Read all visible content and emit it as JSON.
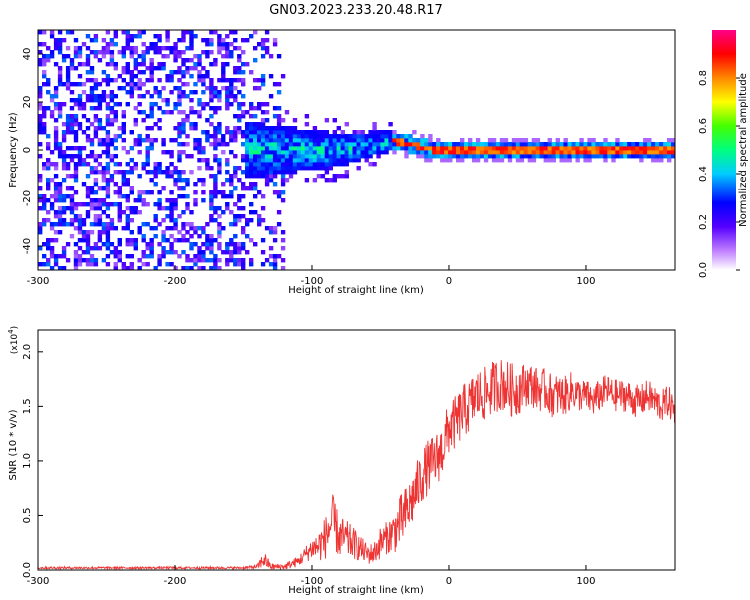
{
  "title": "GN03.2023.233.20.48.R17",
  "chart_data": [
    {
      "type": "heatmap",
      "xlabel": "Height of straight line (km)",
      "ylabel": "Frequency (Hz)",
      "xlim": [
        -300,
        165
      ],
      "ylim": [
        -50,
        50
      ],
      "xticks": [
        -300,
        -200,
        -100,
        0,
        100
      ],
      "yticks": [
        -40,
        -20,
        0,
        20,
        40
      ],
      "colorbar": {
        "label": "Normalized spectral amplitude",
        "range": [
          0,
          1
        ],
        "ticks": [
          "0.0",
          "0.2",
          "0.4",
          "0.6",
          "0.8"
        ],
        "colors": [
          "#ffffff",
          "#8800ff",
          "#0000ff",
          "#00ffff",
          "#00ff00",
          "#ffff00",
          "#ff8800",
          "#ff0000",
          "#ff0088"
        ]
      },
      "regions": [
        {
          "x_range": [
            -300,
            -120
          ],
          "description": "broadband noise, amplitude 0.1-0.3",
          "amplitude": 0.2
        },
        {
          "x_range": [
            -150,
            -40
          ],
          "freq_center": 0,
          "freq_spread": 12,
          "amplitude": 0.45
        },
        {
          "x_range": [
            -40,
            165
          ],
          "freq_center": 0,
          "freq_spread": 3,
          "amplitude": 0.85
        }
      ]
    },
    {
      "type": "line",
      "xlabel": "Height of straight line (km)",
      "ylabel": "SNR (10 * v/v)",
      "yscale_label": "(x10",
      "yscale_exp": "4",
      "yscale_close": ")",
      "xlim": [
        -300,
        165
      ],
      "ylim": [
        0,
        2.2
      ],
      "xticks": [
        -300,
        -200,
        -100,
        0,
        100
      ],
      "yticks": [
        "0.0",
        "0.5",
        "1.0",
        "1.5",
        "2.0"
      ],
      "series": [
        {
          "color": "#ee3333",
          "x": [
            -300,
            -260,
            -220,
            -180,
            -150,
            -140,
            -135,
            -130,
            -120,
            -110,
            -100,
            -95,
            -90,
            -85,
            -80,
            -75,
            -70,
            -65,
            -60,
            -55,
            -50,
            -45,
            -40,
            -35,
            -30,
            -25,
            -20,
            -15,
            -10,
            -5,
            0,
            5,
            10,
            15,
            20,
            25,
            30,
            35,
            40,
            45,
            50,
            55,
            60,
            65,
            70,
            75,
            80,
            85,
            90,
            95,
            100,
            105,
            110,
            115,
            120,
            125,
            130,
            135,
            140,
            145,
            150,
            155,
            160,
            165
          ],
          "y": [
            0.02,
            0.02,
            0.02,
            0.02,
            0.02,
            0.03,
            0.1,
            0.03,
            0.03,
            0.08,
            0.2,
            0.22,
            0.3,
            0.45,
            0.3,
            0.28,
            0.25,
            0.2,
            0.15,
            0.15,
            0.25,
            0.3,
            0.35,
            0.45,
            0.55,
            0.7,
            0.85,
            0.95,
            1.0,
            1.1,
            1.3,
            1.35,
            1.45,
            1.5,
            1.6,
            1.6,
            1.65,
            1.7,
            1.7,
            1.65,
            1.65,
            1.7,
            1.7,
            1.65,
            1.65,
            1.6,
            1.6,
            1.6,
            1.65,
            1.6,
            1.6,
            1.55,
            1.6,
            1.65,
            1.6,
            1.6,
            1.6,
            1.55,
            1.55,
            1.6,
            1.55,
            1.5,
            1.55,
            1.45
          ],
          "noise_amplitude": [
            0.01,
            0.01,
            0.01,
            0.01,
            0.01,
            0.02,
            0.08,
            0.03,
            0.03,
            0.05,
            0.1,
            0.15,
            0.2,
            0.25,
            0.2,
            0.18,
            0.15,
            0.12,
            0.1,
            0.1,
            0.15,
            0.15,
            0.2,
            0.25,
            0.25,
            0.25,
            0.25,
            0.25,
            0.25,
            0.25,
            0.25,
            0.25,
            0.25,
            0.25,
            0.25,
            0.25,
            0.25,
            0.25,
            0.25,
            0.25,
            0.25,
            0.2,
            0.2,
            0.2,
            0.2,
            0.2,
            0.2,
            0.18,
            0.18,
            0.15,
            0.15,
            0.15,
            0.15,
            0.15,
            0.15,
            0.15,
            0.15,
            0.15,
            0.15,
            0.15,
            0.15,
            0.15,
            0.15,
            0.15
          ]
        }
      ]
    }
  ]
}
